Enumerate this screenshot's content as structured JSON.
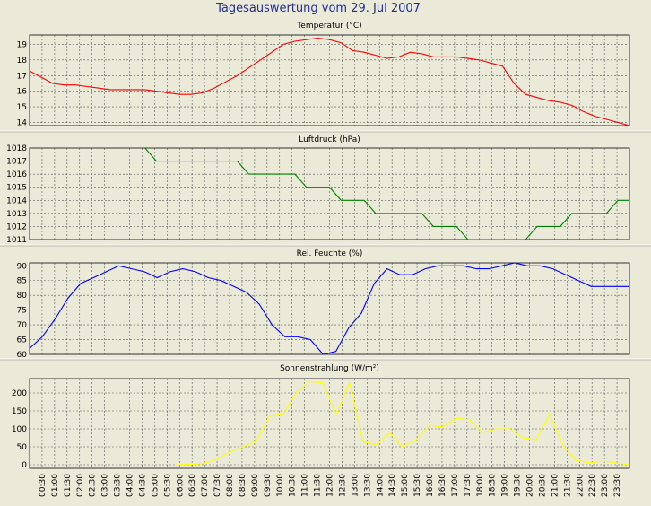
{
  "title": "Tagesauswertung vom 29. Jul 2007",
  "colors": {
    "background": "#ebe9d8",
    "grid": "#555555",
    "panel_border": "#ffffff"
  },
  "chart_data": [
    {
      "type": "line",
      "title": "Temperatur (°C)",
      "ylim": [
        13.8,
        19.6
      ],
      "yticks": [
        14,
        15,
        16,
        17,
        18,
        19
      ],
      "grid": true,
      "series": [
        {
          "color": "#ff0000",
          "values": [
            17.3,
            16.9,
            16.5,
            16.4,
            16.4,
            16.3,
            16.2,
            16.1,
            16.1,
            16.1,
            16.1,
            16.0,
            15.9,
            15.8,
            15.8,
            15.9,
            16.2,
            16.6,
            17.0,
            17.5,
            18.0,
            18.5,
            19.0,
            19.2,
            19.3,
            19.4,
            19.3,
            19.1,
            18.6,
            18.5,
            18.3,
            18.1,
            18.2,
            18.5,
            18.4,
            18.2,
            18.2,
            18.2,
            18.1,
            18.0,
            17.8,
            17.6,
            16.5,
            15.8,
            15.6,
            15.4,
            15.3,
            15.1,
            14.7,
            14.4,
            14.2,
            14.0,
            13.8
          ]
        }
      ]
    },
    {
      "type": "line",
      "title": "Luftdruck (hPa)",
      "ylim": [
        1011,
        1018
      ],
      "yticks": [
        1011,
        1012,
        1013,
        1014,
        1015,
        1016,
        1017,
        1018
      ],
      "grid": true,
      "series": [
        {
          "color": "#008000",
          "values": [
            null,
            null,
            null,
            null,
            null,
            null,
            null,
            null,
            null,
            null,
            1018,
            1017,
            1017,
            1017,
            1017,
            1017,
            1017,
            1017,
            1017,
            1016,
            1016,
            1016,
            1016,
            1016,
            1015,
            1015,
            1015,
            1014,
            1014,
            1014,
            1013,
            1013,
            1013,
            1013,
            1013,
            1012,
            1012,
            1012,
            1011,
            1011,
            1011,
            1011,
            1011,
            1011,
            1012,
            1012,
            1012,
            1013,
            1013,
            1013,
            1013,
            1014,
            1014
          ]
        }
      ]
    },
    {
      "type": "line",
      "title": "Rel. Feuchte (%)",
      "ylim": [
        60,
        91
      ],
      "yticks": [
        60,
        65,
        70,
        75,
        80,
        85,
        90
      ],
      "grid": true,
      "series": [
        {
          "color": "#0000ff",
          "values": [
            62,
            66,
            72,
            79,
            84,
            86,
            88,
            90,
            89,
            88,
            86,
            88,
            89,
            88,
            86,
            85,
            83,
            81,
            77,
            70,
            66,
            66,
            65,
            60,
            61,
            69,
            74,
            84,
            89,
            87,
            87,
            89,
            90,
            90,
            90,
            89,
            89,
            90,
            91,
            90,
            90,
            89,
            87,
            85,
            83,
            83,
            83,
            83
          ]
        }
      ]
    },
    {
      "type": "line",
      "title": "Sonnenstrahlung (W/m²)",
      "ylim": [
        -10,
        240
      ],
      "yticks": [
        0,
        50,
        100,
        150,
        200
      ],
      "grid": true,
      "series": [
        {
          "color": "#ffff00",
          "values": [
            null,
            null,
            null,
            null,
            null,
            null,
            null,
            null,
            null,
            null,
            null,
            0,
            1,
            3,
            15,
            35,
            50,
            65,
            135,
            140,
            200,
            232,
            228,
            140,
            228,
            64,
            56,
            88,
            50,
            70,
            110,
            105,
            130,
            125,
            90,
            100,
            100,
            75,
            70,
            140,
            55,
            12,
            5,
            10,
            5,
            0
          ]
        }
      ]
    }
  ],
  "x_labels": [
    "00:30",
    "01:00",
    "01:30",
    "02:00",
    "02:30",
    "03:00",
    "03:30",
    "04:00",
    "04:30",
    "05:00",
    "05:30",
    "06:00",
    "06:30",
    "07:00",
    "07:30",
    "08:00",
    "08:30",
    "09:00",
    "09:30",
    "10:00",
    "10:30",
    "11:00",
    "11:30",
    "12:00",
    "12:30",
    "13:00",
    "13:30",
    "14:00",
    "14:30",
    "15:00",
    "15:30",
    "16:00",
    "16:30",
    "17:00",
    "17:30",
    "18:00",
    "18:30",
    "19:00",
    "19:30",
    "20:00",
    "20:30",
    "21:00",
    "21:30",
    "22:00",
    "22:30",
    "23:00",
    "23:30"
  ]
}
